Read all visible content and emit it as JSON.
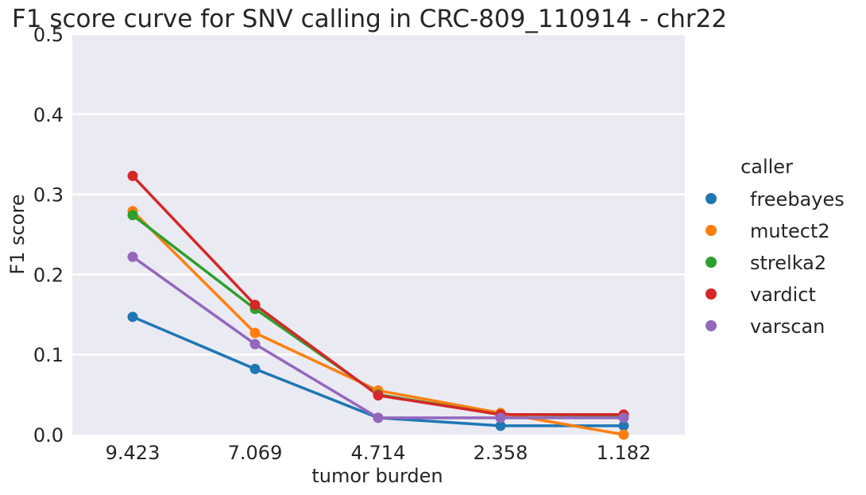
{
  "chart_data": {
    "type": "line",
    "title": "F1 score curve for SNV calling in CRC-809_110914 - chr22",
    "xlabel": "tumor burden",
    "ylabel": "F1 score",
    "categories": [
      "9.423",
      "7.069",
      "4.714",
      "2.358",
      "1.182"
    ],
    "ylim": [
      0,
      0.5
    ],
    "yticks": [
      "0.0",
      "0.1",
      "0.2",
      "0.3",
      "0.4",
      "0.5"
    ],
    "grid": true,
    "legend_title": "caller",
    "legend_position": "right",
    "series": [
      {
        "name": "freebayes",
        "color": "#1f77b4",
        "values": [
          0.147,
          0.082,
          0.021,
          0.011,
          0.011
        ]
      },
      {
        "name": "mutect2",
        "color": "#ff7f0e",
        "values": [
          0.279,
          0.127,
          0.055,
          0.027,
          0.0
        ]
      },
      {
        "name": "strelka2",
        "color": "#2ca02c",
        "values": [
          0.274,
          0.157,
          0.05,
          0.025,
          0.024
        ]
      },
      {
        "name": "vardict",
        "color": "#d62728",
        "values": [
          0.323,
          0.162,
          0.049,
          0.025,
          0.025
        ]
      },
      {
        "name": "varscan",
        "color": "#9467bd",
        "values": [
          0.222,
          0.113,
          0.021,
          0.021,
          0.021
        ]
      }
    ]
  }
}
